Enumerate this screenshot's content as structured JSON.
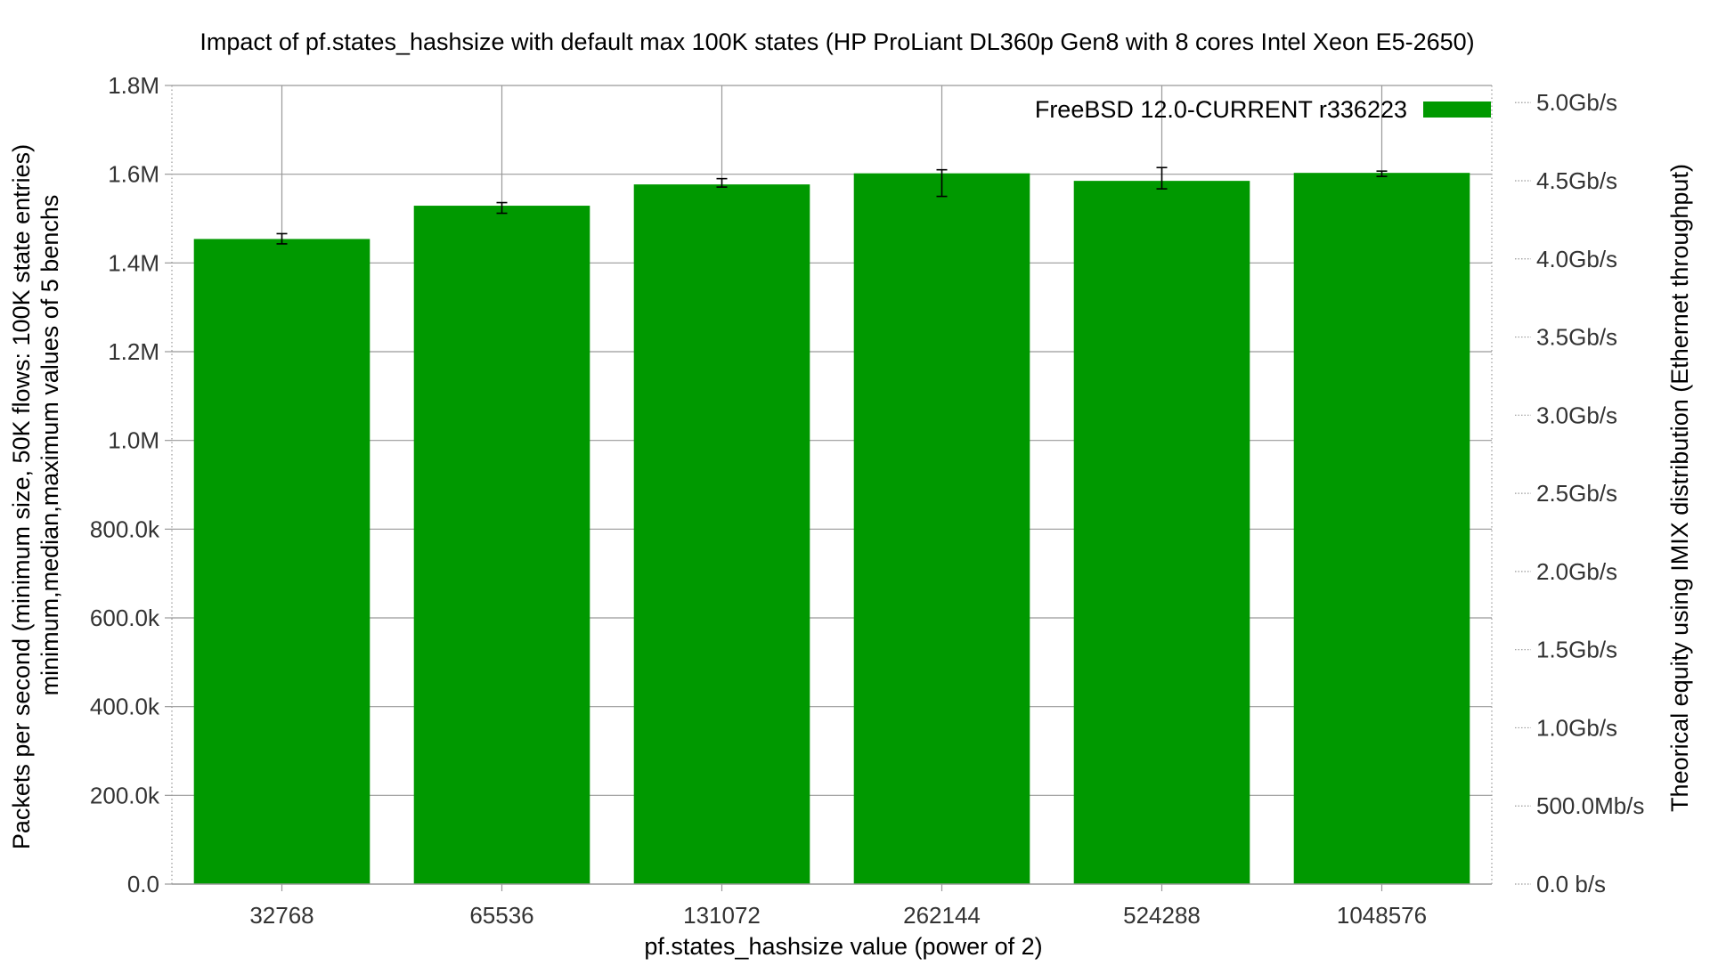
{
  "chart_data": {
    "type": "bar",
    "title": "Impact of pf.states_hashsize with default max 100K states (HP ProLiant DL360p Gen8 with 8 cores Intel Xeon E5-2650)",
    "xlabel": "pf.states_hashsize value (power of 2)",
    "ylabel_line1": "Packets per second (minimum size, 50K flows: 100K state entries)",
    "ylabel_line2": "minimum,median,maximum values of 5 benchs",
    "y2label": "Theorical equity using IMIX distribution (Ethernet throughput)",
    "categories": [
      "32768",
      "65536",
      "131072",
      "262144",
      "524288",
      "1048576"
    ],
    "series": [
      {
        "name": "FreeBSD 12.0-CURRENT r336223",
        "color": "#009900",
        "values": [
          1454000,
          1529000,
          1577000,
          1602000,
          1585000,
          1603000
        ],
        "err_min": [
          1443000,
          1512000,
          1571000,
          1550000,
          1567000,
          1595000
        ],
        "err_max": [
          1466000,
          1536000,
          1590000,
          1610000,
          1615000,
          1607000
        ]
      }
    ],
    "ylim": [
      0,
      1800000
    ],
    "y_ticks": [
      0,
      200000,
      400000,
      600000,
      800000,
      1000000,
      1200000,
      1400000,
      1600000,
      1800000
    ],
    "y_tick_labels": [
      "0.0",
      "200.0k",
      "400.0k",
      "600.0k",
      "800.0k",
      "1.0M",
      "1.2M",
      "1.4M",
      "1.6M",
      "1.8M"
    ],
    "y2_ticks": [
      0,
      500000000,
      1000000000,
      1500000000,
      2000000000,
      2500000000,
      3000000000,
      3500000000,
      4000000000,
      4500000000,
      5000000000
    ],
    "y2_tick_labels": [
      "0.0 b/s",
      "500.0Mb/s",
      "1.0Gb/s",
      "1.5Gb/s",
      "2.0Gb/s",
      "2.5Gb/s",
      "3.0Gb/s",
      "3.5Gb/s",
      "4.0Gb/s",
      "4.5Gb/s",
      "5.0Gb/s"
    ],
    "y2_bps_per_pps": 2838.6,
    "grid": true,
    "legend_position": "top-right",
    "colors": {
      "bar": "#009900",
      "axis": "#999999",
      "grid": "#999999",
      "text": "#000000",
      "tick_text": "#333333",
      "error_bar": "#000000"
    }
  }
}
